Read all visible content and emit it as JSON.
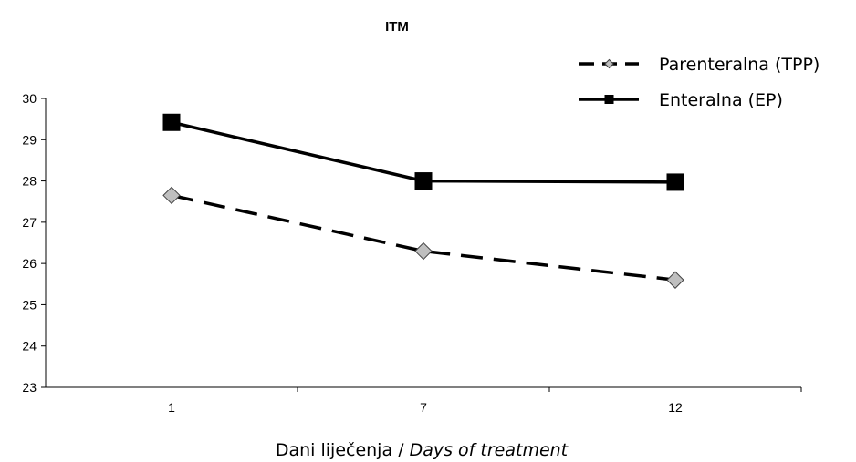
{
  "chart_data": {
    "type": "line",
    "title": "ITM",
    "xlabel_plain": "Dani liječenja / ",
    "xlabel_italic": "Days of treatment",
    "ylabel": "",
    "categories": [
      "1",
      "7",
      "12"
    ],
    "ylim": [
      23,
      30
    ],
    "yticks": [
      "23",
      "24",
      "25",
      "26",
      "27",
      "28",
      "29",
      "30"
    ],
    "grid": false,
    "legend_position": "top-right",
    "series": [
      {
        "name": "Parenteralna (TPP)",
        "values": [
          27.65,
          26.3,
          25.6
        ],
        "line_style": "dashed",
        "marker": "diamond",
        "marker_color": "#bfbfbf",
        "line_color": "#000000"
      },
      {
        "name": "Enteralna (EP)",
        "values": [
          29.42,
          28.0,
          27.97
        ],
        "line_style": "solid",
        "marker": "square",
        "marker_color": "#000000",
        "line_color": "#000000"
      }
    ]
  }
}
